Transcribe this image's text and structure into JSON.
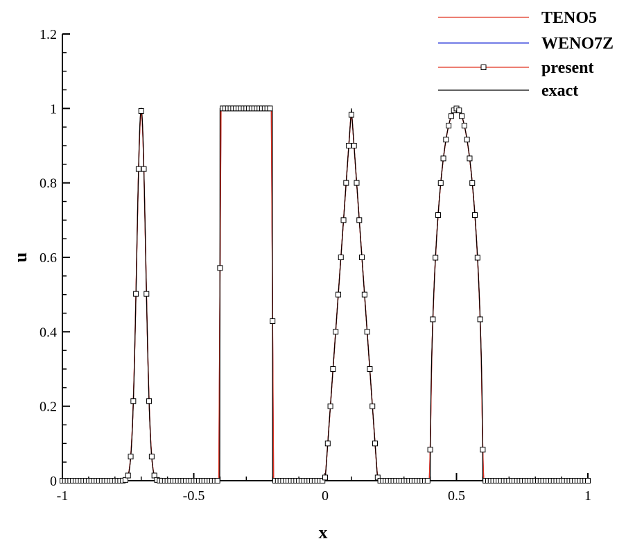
{
  "chart_data": {
    "type": "line",
    "xlabel": "x",
    "ylabel": "u",
    "xlim": [
      -1,
      1
    ],
    "ylim": [
      0,
      1.2
    ],
    "x_ticks": [
      -1,
      -0.5,
      0,
      0.5,
      1
    ],
    "x_tick_labels": [
      "-1",
      "-0.5",
      "0",
      "0.5",
      "1"
    ],
    "y_ticks": [
      0,
      0.2,
      0.4,
      0.6,
      0.8,
      1,
      1.2
    ],
    "y_tick_labels": [
      "0",
      "0.2",
      "0.4",
      "0.6",
      "0.8",
      "1",
      "1.2"
    ],
    "legend_position": "top-right",
    "grid": false,
    "series": [
      {
        "name": "TENO5",
        "color": "#e0301e",
        "marker": "none"
      },
      {
        "name": "WENO7Z",
        "color": "#1f2fd6",
        "marker": "none"
      },
      {
        "name": "present",
        "color": "#e0301e",
        "marker": "square"
      },
      {
        "name": "exact",
        "color": "#000000",
        "marker": "none"
      }
    ],
    "exact_segments": [
      {
        "shape": "gaussian",
        "x_start": -0.8,
        "x_end": -0.6,
        "center": -0.7,
        "peak": 1
      },
      {
        "shape": "square",
        "x_start": -0.4,
        "x_end": -0.2,
        "value": 1
      },
      {
        "shape": "triangle",
        "x_start": 0.0,
        "x_end": 0.2,
        "center": 0.1,
        "peak": 1
      },
      {
        "shape": "ellipse",
        "x_start": 0.4,
        "x_end": 0.6,
        "center": 0.5,
        "peak": 1
      }
    ],
    "sample_count": 200
  }
}
